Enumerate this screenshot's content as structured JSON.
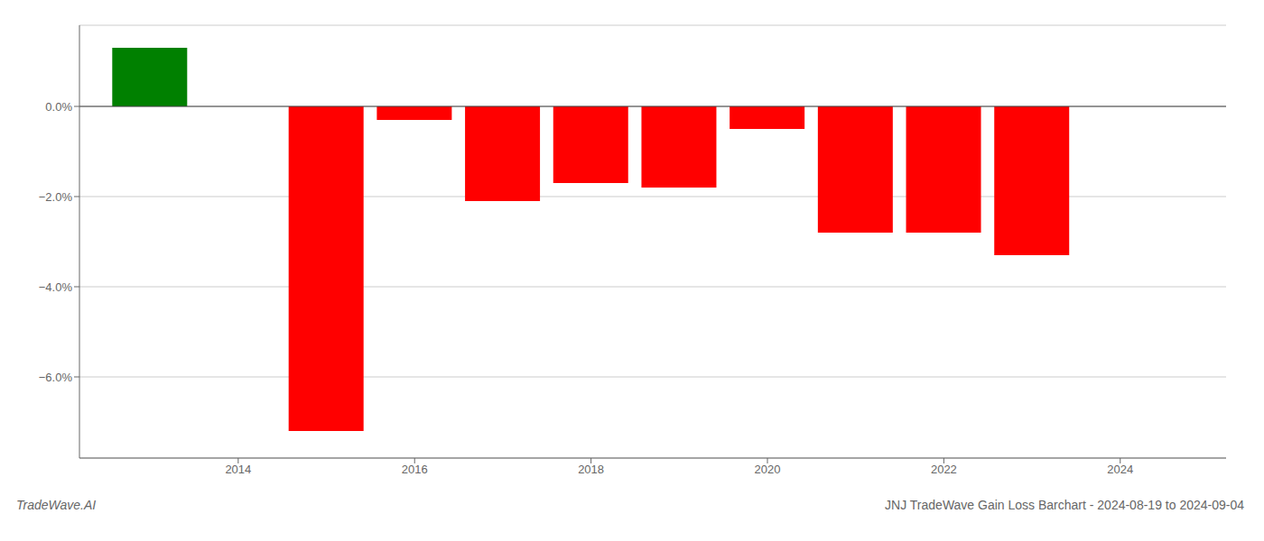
{
  "chart_data": {
    "type": "bar",
    "title": "JNJ TradeWave Gain Loss Barchart - 2024-08-19 to 2024-09-04",
    "annotations": [
      "TradeWave.AI"
    ],
    "x": [
      2013,
      2015,
      2016,
      2017,
      2018,
      2019,
      2020,
      2021,
      2022,
      2023
    ],
    "values": [
      1.3,
      -7.2,
      -0.3,
      -2.1,
      -1.7,
      -1.8,
      -0.5,
      -2.8,
      -2.8,
      -3.3
    ],
    "colors": [
      "#008000",
      "#ff0000",
      "#ff0000",
      "#ff0000",
      "#ff0000",
      "#ff0000",
      "#ff0000",
      "#ff0000",
      "#ff0000",
      "#ff0000"
    ],
    "xlim": [
      2012.2,
      2025.2
    ],
    "xticks": [
      2014,
      2016,
      2018,
      2020,
      2022,
      2024
    ],
    "ylim": [
      -7.8,
      1.8
    ],
    "yticks": [
      {
        "value": 0.0,
        "label": "0.0%"
      },
      {
        "value": -2.0,
        "label": "−2.0%"
      },
      {
        "value": -4.0,
        "label": "−4.0%"
      },
      {
        "value": -6.0,
        "label": "−6.0%"
      }
    ],
    "grid": true
  }
}
